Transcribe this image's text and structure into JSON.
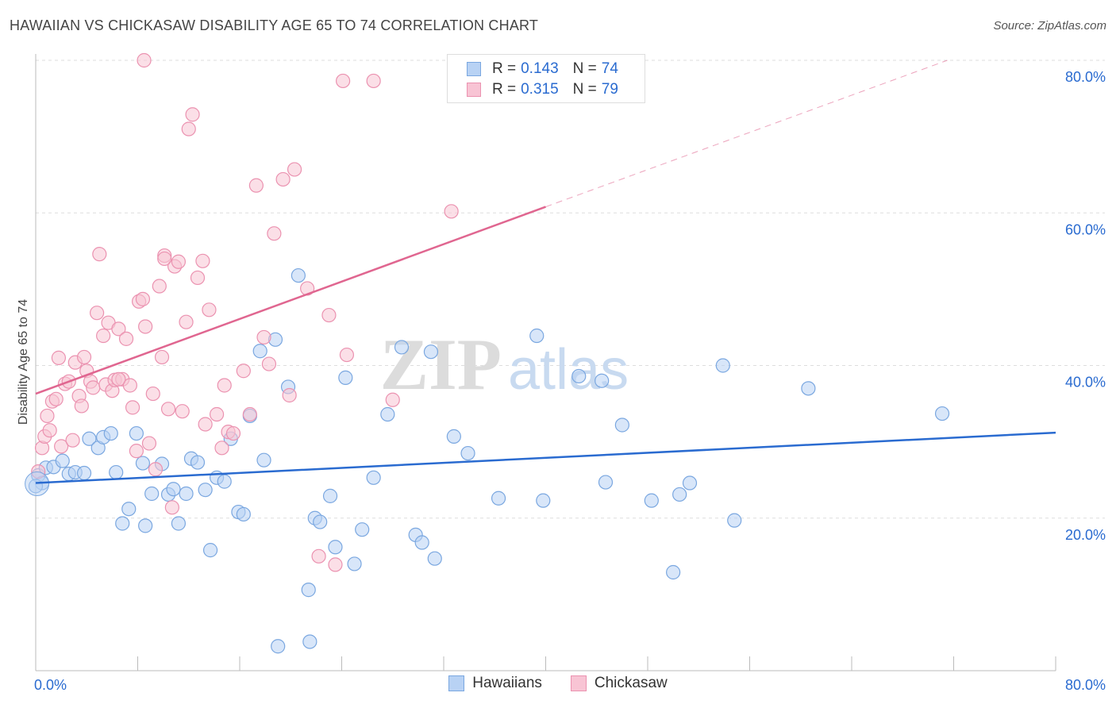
{
  "title": "HAWAIIAN VS CHICKASAW DISABILITY AGE 65 TO 74 CORRELATION CHART",
  "source": "Source: ZipAtlas.com",
  "watermark": {
    "zip": "ZIP",
    "atlas": "atlas"
  },
  "colors": {
    "hawaiians_fill": "#b8d2f4",
    "hawaiians_stroke": "#7aa7e0",
    "hawaiians_line": "#2a6bd0",
    "chickasaw_fill": "#f8c4d4",
    "chickasaw_stroke": "#eb92b0",
    "chickasaw_line": "#e06690",
    "axis_text": "#2a6bd0",
    "grid": "#dddddd"
  },
  "legend_top": {
    "rows": [
      {
        "r_label": "R =",
        "r_value": "0.143",
        "n_label": "N =",
        "n_value": "74"
      },
      {
        "r_label": "R =",
        "r_value": "0.315",
        "n_label": "N =",
        "n_value": "79"
      }
    ]
  },
  "legend_bottom": {
    "items": [
      "Hawaiians",
      "Chickasaw"
    ]
  },
  "chart_data": {
    "type": "scatter",
    "title": "HAWAIIAN VS CHICKASAW DISABILITY AGE 65 TO 74 CORRELATION CHART",
    "xlabel": "",
    "ylabel": "Disability Age 65 to 74",
    "xlim": [
      0,
      80
    ],
    "ylim": [
      0,
      80
    ],
    "x_tick_labels": [
      "0.0%",
      "80.0%"
    ],
    "y_ticks": [
      20,
      40,
      60,
      80
    ],
    "y_tick_labels": [
      "20.0%",
      "40.0%",
      "60.0%",
      "80.0%"
    ],
    "grid": true,
    "legend_placement": "top-center",
    "series": [
      {
        "name": "Hawaiians",
        "r": 0.143,
        "n": 74,
        "trend": {
          "x0": 0,
          "y0": 24.6,
          "x1": 80,
          "y1": 31.2
        },
        "points": [
          [
            0.2,
            25.6
          ],
          [
            0.5,
            24.6
          ],
          [
            0.8,
            26.6
          ],
          [
            1.4,
            26.7
          ],
          [
            2.1,
            27.5
          ],
          [
            2.6,
            25.8
          ],
          [
            3.1,
            26.0
          ],
          [
            3.8,
            25.9
          ],
          [
            4.2,
            30.4
          ],
          [
            4.9,
            29.2
          ],
          [
            5.3,
            30.6
          ],
          [
            5.9,
            31.1
          ],
          [
            6.3,
            26.0
          ],
          [
            6.8,
            19.3
          ],
          [
            7.3,
            21.2
          ],
          [
            7.9,
            31.1
          ],
          [
            8.4,
            27.2
          ],
          [
            8.6,
            19.0
          ],
          [
            9.1,
            23.2
          ],
          [
            9.9,
            27.1
          ],
          [
            10.4,
            23.1
          ],
          [
            10.8,
            23.8
          ],
          [
            11.2,
            19.3
          ],
          [
            11.8,
            23.2
          ],
          [
            12.2,
            27.8
          ],
          [
            12.7,
            27.3
          ],
          [
            13.3,
            23.7
          ],
          [
            13.7,
            15.8
          ],
          [
            14.2,
            25.3
          ],
          [
            14.8,
            24.8
          ],
          [
            15.3,
            30.4
          ],
          [
            15.9,
            20.8
          ],
          [
            16.3,
            20.5
          ],
          [
            16.8,
            33.4
          ],
          [
            17.6,
            41.9
          ],
          [
            17.9,
            27.6
          ],
          [
            18.8,
            43.4
          ],
          [
            19.8,
            37.2
          ],
          [
            20.6,
            51.8
          ],
          [
            21.4,
            10.6
          ],
          [
            21.9,
            20.0
          ],
          [
            22.3,
            19.5
          ],
          [
            23.1,
            22.9
          ],
          [
            23.5,
            16.2
          ],
          [
            24.3,
            38.4
          ],
          [
            25.0,
            14.0
          ],
          [
            25.6,
            18.5
          ],
          [
            26.5,
            25.3
          ],
          [
            27.6,
            33.6
          ],
          [
            28.7,
            42.4
          ],
          [
            29.8,
            17.8
          ],
          [
            30.3,
            16.8
          ],
          [
            31.0,
            41.8
          ],
          [
            31.3,
            14.7
          ],
          [
            32.8,
            30.7
          ],
          [
            33.9,
            28.5
          ],
          [
            36.3,
            22.6
          ],
          [
            39.3,
            43.9
          ],
          [
            39.8,
            22.3
          ],
          [
            42.6,
            38.6
          ],
          [
            44.4,
            38.0
          ],
          [
            44.7,
            24.7
          ],
          [
            46.0,
            32.2
          ],
          [
            48.3,
            22.3
          ],
          [
            50.0,
            12.9
          ],
          [
            50.5,
            23.1
          ],
          [
            51.3,
            24.6
          ],
          [
            53.9,
            40.0
          ],
          [
            54.8,
            19.7
          ],
          [
            60.6,
            37.0
          ],
          [
            71.1,
            33.7
          ],
          [
            19.0,
            3.2
          ],
          [
            21.5,
            3.8
          ],
          [
            0.0,
            24.2
          ]
        ]
      },
      {
        "name": "Chickasaw",
        "r": 0.315,
        "n": 79,
        "trend": {
          "x0": 0,
          "y0": 36.3,
          "x1": 40,
          "y1": 60.8
        },
        "trend_dashed": {
          "x0": 40,
          "y0": 60.8,
          "x1": 71.5,
          "y1": 80
        },
        "points": [
          [
            0.2,
            26.1
          ],
          [
            0.5,
            29.2
          ],
          [
            0.7,
            30.7
          ],
          [
            0.9,
            33.4
          ],
          [
            1.1,
            31.5
          ],
          [
            1.3,
            35.3
          ],
          [
            1.6,
            35.6
          ],
          [
            1.8,
            41.0
          ],
          [
            2.0,
            29.4
          ],
          [
            2.3,
            37.6
          ],
          [
            2.6,
            37.9
          ],
          [
            2.9,
            30.2
          ],
          [
            3.1,
            40.4
          ],
          [
            3.4,
            36.0
          ],
          [
            3.6,
            34.7
          ],
          [
            3.8,
            41.1
          ],
          [
            4.0,
            39.3
          ],
          [
            4.3,
            37.9
          ],
          [
            4.5,
            37.1
          ],
          [
            4.8,
            46.9
          ],
          [
            5.0,
            54.6
          ],
          [
            5.3,
            43.9
          ],
          [
            5.5,
            37.5
          ],
          [
            5.7,
            45.6
          ],
          [
            6.0,
            36.7
          ],
          [
            6.2,
            38.1
          ],
          [
            6.5,
            44.8
          ],
          [
            6.8,
            38.2
          ],
          [
            7.1,
            43.5
          ],
          [
            7.4,
            37.4
          ],
          [
            7.6,
            34.5
          ],
          [
            7.9,
            28.8
          ],
          [
            8.1,
            48.4
          ],
          [
            8.4,
            48.7
          ],
          [
            8.6,
            45.1
          ],
          [
            8.9,
            29.8
          ],
          [
            9.2,
            36.3
          ],
          [
            9.4,
            26.4
          ],
          [
            9.7,
            50.4
          ],
          [
            9.9,
            41.1
          ],
          [
            10.1,
            54.4
          ],
          [
            10.4,
            34.3
          ],
          [
            10.7,
            21.4
          ],
          [
            10.9,
            53.0
          ],
          [
            11.2,
            53.6
          ],
          [
            11.5,
            34.0
          ],
          [
            11.8,
            45.7
          ],
          [
            12.0,
            71.0
          ],
          [
            12.3,
            72.9
          ],
          [
            12.7,
            51.5
          ],
          [
            13.1,
            53.7
          ],
          [
            13.3,
            32.3
          ],
          [
            13.6,
            47.3
          ],
          [
            14.2,
            33.6
          ],
          [
            14.6,
            29.2
          ],
          [
            14.8,
            37.4
          ],
          [
            15.1,
            31.3
          ],
          [
            15.5,
            31.1
          ],
          [
            16.3,
            39.3
          ],
          [
            16.8,
            33.6
          ],
          [
            17.3,
            63.6
          ],
          [
            17.9,
            43.7
          ],
          [
            18.3,
            40.2
          ],
          [
            18.7,
            57.3
          ],
          [
            19.4,
            64.4
          ],
          [
            19.9,
            36.1
          ],
          [
            20.3,
            65.7
          ],
          [
            21.3,
            50.1
          ],
          [
            22.2,
            15.0
          ],
          [
            23.0,
            46.6
          ],
          [
            23.5,
            13.9
          ],
          [
            24.1,
            77.3
          ],
          [
            24.4,
            41.4
          ],
          [
            26.5,
            77.3
          ],
          [
            28.0,
            35.5
          ],
          [
            8.5,
            80.0
          ],
          [
            10.1,
            54.0
          ],
          [
            32.6,
            60.2
          ],
          [
            6.5,
            38.2
          ]
        ]
      }
    ]
  }
}
